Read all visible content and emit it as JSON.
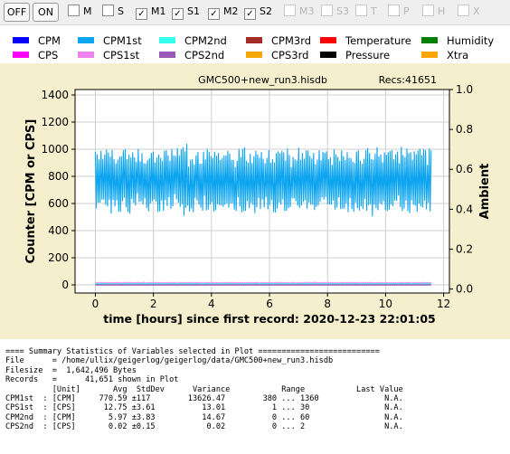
{
  "toolbar": {
    "off_label": "OFF",
    "on_label": "ON",
    "checkboxes": [
      {
        "label": "M",
        "checked": false,
        "enabled": true
      },
      {
        "label": "S",
        "checked": false,
        "enabled": true
      },
      {
        "label": "M1",
        "checked": true,
        "enabled": true
      },
      {
        "label": "S1",
        "checked": true,
        "enabled": true
      },
      {
        "label": "M2",
        "checked": true,
        "enabled": true
      },
      {
        "label": "S2",
        "checked": true,
        "enabled": true
      },
      {
        "label": "M3",
        "checked": false,
        "enabled": false
      },
      {
        "label": "S3",
        "checked": false,
        "enabled": false
      },
      {
        "label": "T",
        "checked": false,
        "enabled": false
      },
      {
        "label": "P",
        "checked": false,
        "enabled": false
      },
      {
        "label": "H",
        "checked": false,
        "enabled": false
      },
      {
        "label": "X",
        "checked": false,
        "enabled": false
      }
    ]
  },
  "legend": [
    {
      "label": "CPM",
      "color": "#0000ff"
    },
    {
      "label": "CPM1st",
      "color": "#0ea5f0"
    },
    {
      "label": "CPM2nd",
      "color": "#33ffee"
    },
    {
      "label": "CPM3rd",
      "color": "#a52a2a"
    },
    {
      "label": "Temperature",
      "color": "#ff0000"
    },
    {
      "label": "Humidity",
      "color": "#008000"
    },
    {
      "label": "CPS",
      "color": "#ff00ff"
    },
    {
      "label": "CPS1st",
      "color": "#ee82ee"
    },
    {
      "label": "CPS2nd",
      "color": "#9b59b6"
    },
    {
      "label": "CPS3rd",
      "color": "#f5a800"
    },
    {
      "label": "Pressure",
      "color": "#000000"
    },
    {
      "label": "Xtra",
      "color": "#ffa500"
    }
  ],
  "chart_data": {
    "type": "line",
    "file_label": "GMC500+new_run3.hisdb",
    "recs_label": "Recs:41651",
    "xlabel": "time [hours] since first record: 2020-12-23 22:01:05",
    "ylabel": "Counter  [CPM or CPS]",
    "y2label": "Ambient",
    "xlim": [
      -0.7,
      12.2
    ],
    "ylim": [
      -60,
      1440
    ],
    "y2lim": [
      -0.02,
      1.0
    ],
    "xticks": [
      0,
      2,
      4,
      6,
      8,
      10,
      12
    ],
    "yticks": [
      0,
      200,
      400,
      600,
      800,
      1000,
      1200,
      1400
    ],
    "y2ticks": [
      "0.0",
      "0.2",
      "0.4",
      "0.6",
      "0.8",
      "1.0"
    ],
    "grid": true,
    "series": [
      {
        "name": "CPM1st",
        "color": "#0ea5f0",
        "x_range": [
          0,
          11.57
        ],
        "y_mean": 770.59,
        "y_stddev": 117,
        "y_min": 380,
        "y_max": 1360
      },
      {
        "name": "CPS1st",
        "color": "#ee82ee",
        "x_range": [
          0,
          11.57
        ],
        "y_mean": 12.75,
        "y_stddev": 3.61,
        "y_min": 1,
        "y_max": 30
      },
      {
        "name": "CPM2nd",
        "color": "#33ffee",
        "x_range": [
          0,
          11.57
        ],
        "y_mean": 5.97,
        "y_stddev": 3.83,
        "y_min": 0,
        "y_max": 60
      },
      {
        "name": "CPS2nd",
        "color": "#9b59b6",
        "x_range": [
          0,
          11.57
        ],
        "y_mean": 0.02,
        "y_stddev": 0.15,
        "y_min": 0,
        "y_max": 2
      }
    ]
  },
  "stats_lines": [
    "==== Summary Statistics of Variables selected in Plot ==========================",
    "File      = /home/ullix/geigerlog/geigerlog/data/GMC500+new_run3.hisdb",
    "Filesize  =  1,642,496 Bytes",
    "Records   =      41,651 shown in Plot",
    "          [Unit]       Avg  StdDev      Variance           Range           Last Value",
    "CPM1st  : [CPM]     770.59 ±117        13626.47        380 ... 1360              N.A.",
    "CPS1st  : [CPS]      12.75 ±3.61          13.01          1 ... 30                N.A.",
    "CPM2nd  : [CPM]       5.97 ±3.83          14.67          0 ... 60                N.A.",
    "CPS2nd  : [CPS]       0.02 ±0.15           0.02          0 ... 2                 N.A."
  ]
}
